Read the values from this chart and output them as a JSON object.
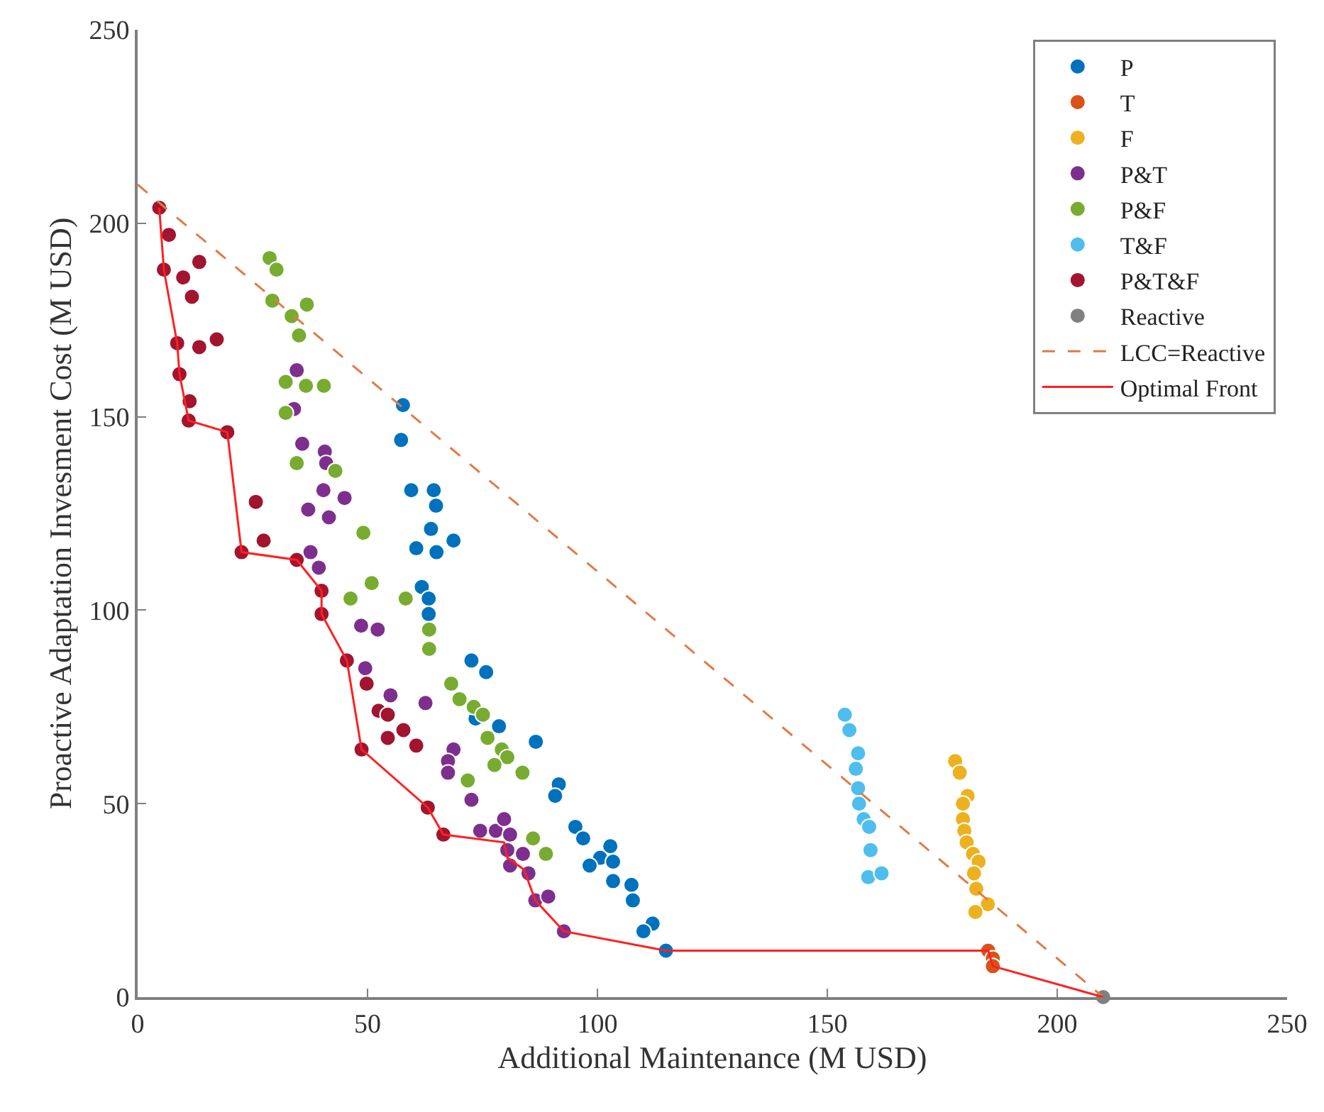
{
  "chart_data": {
    "type": "scatter",
    "xlabel": "Additional Maintenance (M USD)",
    "ylabel": "Proactive Adaptation Invesment Cost (M USD)",
    "xlim": [
      0,
      250
    ],
    "ylim": [
      0,
      250
    ],
    "xticks": [
      0,
      50,
      100,
      150,
      200,
      250
    ],
    "yticks": [
      0,
      50,
      100,
      150,
      200,
      250
    ],
    "legend": "top right",
    "marker": "circle",
    "series": [
      {
        "name": "P",
        "color": "#0072bd",
        "x": [
          57.7,
          57.3,
          59.5,
          64.4,
          64.9,
          63.8,
          60.6,
          65,
          68.7,
          61.8,
          63.3,
          63.3,
          72.6,
          75.8,
          73.5,
          78.6,
          86.6,
          91.6,
          90.8,
          95.2,
          96.9,
          102.8,
          100.6,
          103.4,
          98.3,
          103.4,
          107.4,
          107.7,
          112,
          110,
          114.9
        ],
        "values": [
          153,
          144,
          131,
          131,
          127,
          121,
          116,
          115,
          118,
          106,
          103,
          99,
          87,
          84,
          72,
          70,
          66,
          55,
          52,
          44,
          41,
          39,
          36,
          35,
          34,
          30,
          29,
          25,
          19,
          17,
          12
        ]
      },
      {
        "name": "T",
        "color": "#d95319",
        "x": [
          185,
          186,
          186
        ],
        "values": [
          12,
          10,
          8
        ]
      },
      {
        "name": "F",
        "color": "#edb120",
        "x": [
          177.8,
          178.8,
          180.5,
          179.5,
          179.5,
          179.8,
          180.3,
          181.7,
          182.9,
          181.9,
          182.4,
          184.9,
          182.2
        ],
        "values": [
          61,
          58,
          52,
          50,
          46,
          43,
          40,
          37,
          35,
          32,
          28,
          24,
          22
        ]
      },
      {
        "name": "P&T",
        "color": "#7e2f8e",
        "x": [
          34.6,
          34,
          35.8,
          40.7,
          41,
          40.4,
          45,
          37.1,
          41.6,
          37.6,
          39.4,
          48.6,
          52.2,
          49.5,
          55,
          62.6,
          68.7,
          67.5,
          67.5,
          72.6,
          74.5,
          77.9,
          79.7,
          81,
          80.4,
          83.8,
          81,
          85,
          86.5,
          89.3,
          92.7
        ],
        "values": [
          162,
          152,
          143,
          141,
          138,
          131,
          129,
          126,
          124,
          115,
          111,
          96,
          95,
          85,
          78,
          76,
          64,
          61,
          58,
          51,
          43,
          43,
          46,
          42,
          38,
          37,
          34,
          32,
          25,
          26,
          17
        ]
      },
      {
        "name": "P&F",
        "color": "#77ac30",
        "x": [
          28.7,
          30.2,
          29.3,
          33.5,
          36.8,
          35.1,
          32.2,
          36.6,
          40.5,
          32.2,
          34.6,
          43,
          49.1,
          50.9,
          46.3,
          58.3,
          63.4,
          63.4,
          68.2,
          70,
          73.1,
          75.1,
          76.1,
          79.2,
          80.4,
          77.6,
          83.7,
          71.8,
          86,
          88.8
        ],
        "values": [
          191,
          188,
          180,
          176,
          179,
          171,
          159,
          158,
          158,
          151,
          138,
          136,
          120,
          107,
          103,
          103,
          95,
          90,
          81,
          77,
          75,
          73,
          67,
          64,
          62,
          60,
          58,
          56,
          41,
          37
        ]
      },
      {
        "name": "T&F",
        "color": "#4dbeee",
        "x": [
          153.8,
          154.8,
          156.7,
          156.2,
          156.7,
          156.9,
          157.9,
          159.1,
          159.4,
          158.9,
          161.8
        ],
        "values": [
          73,
          69,
          63,
          59,
          54,
          50,
          46,
          44,
          38,
          31,
          32
        ]
      },
      {
        "name": "P&T&F",
        "color": "#a2142f",
        "x": [
          4.7,
          6.8,
          13.4,
          5.7,
          9.9,
          11.8,
          17.2,
          8.6,
          13.4,
          9.1,
          11.3,
          11.1,
          19.5,
          25.7,
          22.6,
          27.4,
          34.6,
          40,
          40,
          45.5,
          49.8,
          52.4,
          54.4,
          57.8,
          54.4,
          60.6,
          48.7,
          63.1,
          66.5
        ],
        "values": [
          204,
          197,
          190,
          188,
          186,
          181,
          170,
          169,
          168,
          161,
          154,
          149,
          146,
          128,
          115,
          118,
          113,
          105,
          99,
          87,
          81,
          74,
          73,
          69,
          67,
          65,
          64,
          49,
          42
        ]
      },
      {
        "name": "Reactive",
        "color": "#808080",
        "x": [
          210
        ],
        "values": [
          0
        ]
      },
      {
        "name": "LCC=Reactive",
        "type": "line",
        "color": "#e07b45",
        "line_style": "dashed",
        "marker": "none",
        "x": [
          0,
          210
        ],
        "values": [
          210,
          0
        ]
      },
      {
        "name": "Optimal Front",
        "type": "line",
        "color": "#ff2020",
        "line_style": "solid",
        "marker": "none",
        "x": [
          4.7,
          5.7,
          8.6,
          9.1,
          11.1,
          19.5,
          22.6,
          34.6,
          40,
          40,
          45.5,
          48.7,
          63.1,
          66.5,
          79.7,
          80.4,
          84,
          86.5,
          92.7,
          114.9,
          185,
          186,
          210
        ],
        "values": [
          204,
          188,
          169,
          161,
          149,
          146,
          115,
          113,
          105,
          99,
          87,
          64,
          49,
          42,
          40,
          36,
          33,
          25,
          17,
          12,
          12,
          8,
          0
        ]
      }
    ]
  }
}
